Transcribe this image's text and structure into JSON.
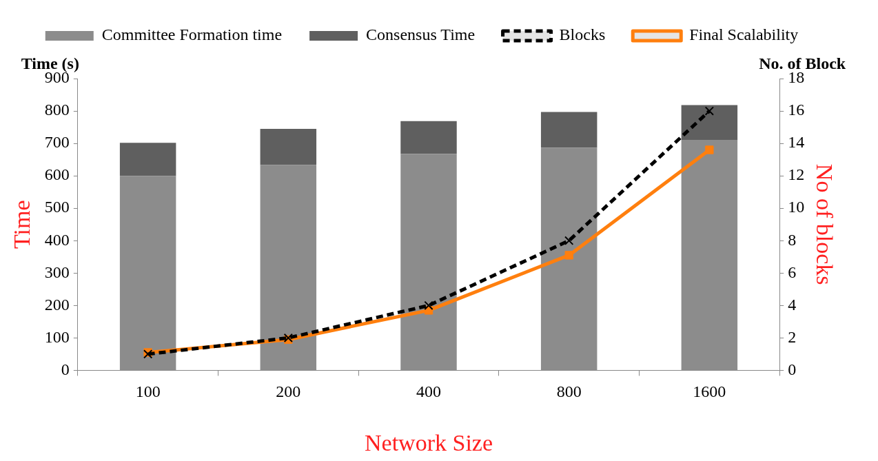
{
  "chart_data": {
    "type": "bar",
    "stacked": true,
    "xlabel": "Network Size",
    "ylabel": "Time",
    "y2label": "No of blocks",
    "annotations": [
      "Time (s)",
      "No. of Block"
    ],
    "categories": [
      "100",
      "200",
      "400",
      "800",
      "1600"
    ],
    "series": [
      {
        "name": "Committee Formation time",
        "color": "#8c8c8c",
        "values": [
          600,
          633,
          668,
          687,
          711
        ]
      },
      {
        "name": "Consensus Time",
        "color": "#5f5f5f",
        "values": [
          102,
          112,
          101,
          110,
          107
        ]
      },
      {
        "name": "Blocks",
        "type": "line",
        "axis": "y2",
        "color": "#000000",
        "marker": "cross",
        "line_style": "dashed",
        "values": [
          1,
          2,
          4,
          8,
          16
        ]
      },
      {
        "name": "Final Scalability",
        "type": "line",
        "axis": "y2",
        "color": "#ff7f0e",
        "marker": "square",
        "line_style": "solid",
        "values": [
          1.1,
          1.9,
          3.7,
          7.1,
          13.6
        ]
      }
    ],
    "ylim": [
      0,
      900
    ],
    "yticks": [
      0,
      100,
      200,
      300,
      400,
      500,
      600,
      700,
      800,
      900
    ],
    "y2lim": [
      0,
      18
    ],
    "y2ticks": [
      0,
      2,
      4,
      6,
      8,
      10,
      12,
      14,
      16,
      18
    ],
    "grid": false,
    "legend": "top"
  }
}
